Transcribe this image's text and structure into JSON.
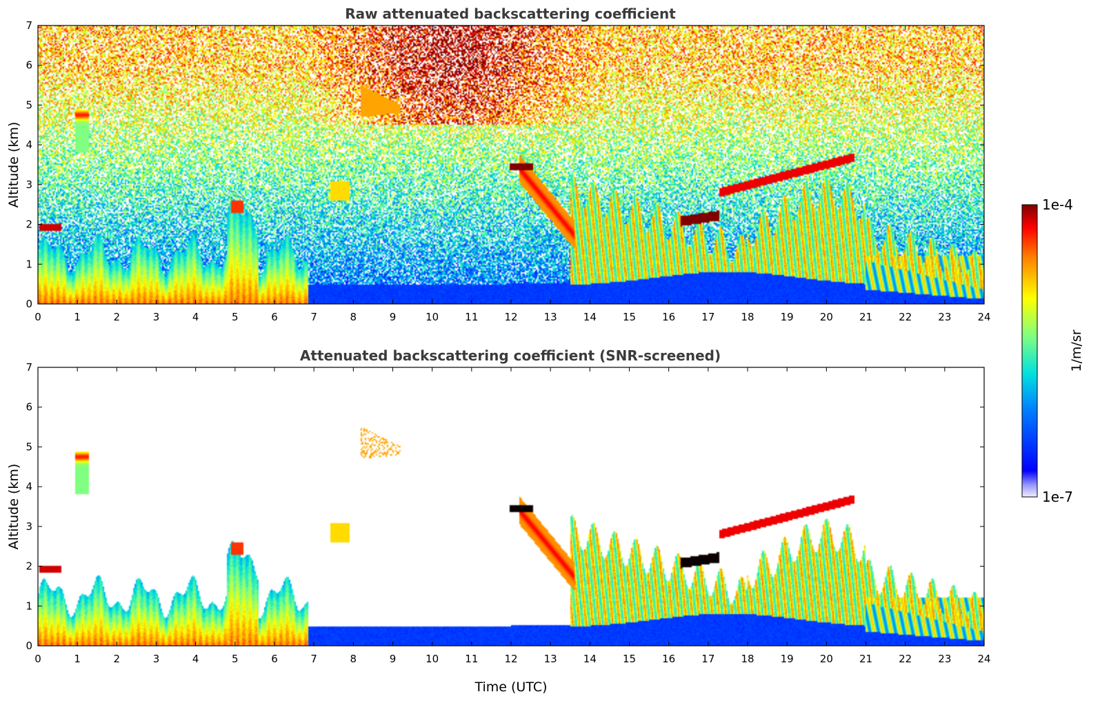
{
  "chart_data": [
    {
      "type": "heatmap",
      "title": "Raw attenuated backscattering coefficient",
      "xlabel": "",
      "ylabel": "Altitude (km)",
      "xlim": [
        0,
        24
      ],
      "ylim": [
        0,
        7
      ],
      "xticks": [
        "0",
        "1",
        "2",
        "3",
        "4",
        "5",
        "6",
        "7",
        "8",
        "9",
        "10",
        "11",
        "12",
        "13",
        "14",
        "15",
        "16",
        "17",
        "18",
        "19",
        "20",
        "21",
        "22",
        "23",
        "24"
      ],
      "yticks": [
        "0",
        "1",
        "2",
        "3",
        "4",
        "5",
        "6",
        "7"
      ],
      "screened": false,
      "features": [
        {
          "kind": "boundary_layer",
          "x": [
            0,
            6.8
          ],
          "top_km": 1.5
        },
        {
          "kind": "layer",
          "x": [
            0.05,
            0.6
          ],
          "y": [
            1.85,
            2.0
          ],
          "level": 1.0
        },
        {
          "kind": "layer",
          "x": [
            11.95,
            12.55
          ],
          "y": [
            3.35,
            3.55
          ],
          "level": 1.0
        },
        {
          "kind": "layer",
          "x": [
            16.3,
            17.3
          ],
          "y": [
            1.95,
            2.2
          ],
          "level": 1.0
        },
        {
          "kind": "layer",
          "x": [
            17.3,
            20.7
          ],
          "y": [
            2.8,
            3.7
          ],
          "level": 0.92
        },
        {
          "kind": "fall_streak",
          "x": [
            12.3,
            13.6
          ],
          "y": [
            1.8,
            3.3
          ],
          "level": 0.85
        },
        {
          "kind": "convective_plumes",
          "x": [
            13.6,
            24
          ],
          "y": [
            0,
            2.8
          ],
          "level": 0.6
        },
        {
          "kind": "clean_air_low_signal",
          "x": [
            6.8,
            21
          ],
          "top_km": 0.5
        }
      ]
    },
    {
      "type": "heatmap",
      "title": "Attenuated backscattering coefficient (SNR-screened)",
      "xlabel": "Time (UTC)",
      "ylabel": "Altitude (km)",
      "xlim": [
        0,
        24
      ],
      "ylim": [
        0,
        7
      ],
      "xticks": [
        "0",
        "1",
        "2",
        "3",
        "4",
        "5",
        "6",
        "7",
        "8",
        "9",
        "10",
        "11",
        "12",
        "13",
        "14",
        "15",
        "16",
        "17",
        "18",
        "19",
        "20",
        "21",
        "22",
        "23",
        "24"
      ],
      "yticks": [
        "0",
        "1",
        "2",
        "3",
        "4",
        "5",
        "6",
        "7"
      ],
      "screened": true
    }
  ],
  "colorbar": {
    "max_label": "1e-4",
    "min_label": "1e-7",
    "unit_label": "1/m/sr",
    "colormap": "jet",
    "scale": "log"
  }
}
